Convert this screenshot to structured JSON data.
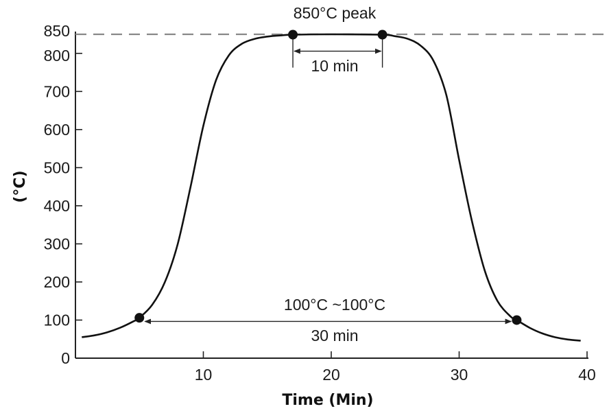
{
  "chart_data": {
    "type": "line",
    "xlabel": "Time (Min)",
    "ylabel": "(°C)",
    "xlim": [
      0,
      40
    ],
    "ylim": [
      0,
      850
    ],
    "x_ticks": [
      10,
      20,
      30,
      40
    ],
    "y_ticks": [
      0,
      100,
      200,
      300,
      400,
      500,
      600,
      700,
      800,
      850
    ],
    "grid": false,
    "series": [
      {
        "points": [
          [
            0.5,
            55
          ],
          [
            1.5,
            60
          ],
          [
            2.5,
            68
          ],
          [
            3.5,
            80
          ],
          [
            4.5,
            96
          ],
          [
            5.0,
            106
          ],
          [
            6.0,
            140
          ],
          [
            7.0,
            200
          ],
          [
            8.0,
            300
          ],
          [
            9.0,
            450
          ],
          [
            10.0,
            610
          ],
          [
            11.0,
            730
          ],
          [
            12.0,
            795
          ],
          [
            13.0,
            825
          ],
          [
            14.0,
            838
          ],
          [
            15.0,
            844
          ],
          [
            16.0,
            847
          ],
          [
            17.0,
            849
          ],
          [
            20.0,
            850
          ],
          [
            24.0,
            849
          ],
          [
            25.0,
            845
          ],
          [
            26.0,
            838
          ],
          [
            27.0,
            820
          ],
          [
            28.0,
            780
          ],
          [
            29.0,
            690
          ],
          [
            30.0,
            520
          ],
          [
            31.0,
            360
          ],
          [
            32.0,
            230
          ],
          [
            33.0,
            150
          ],
          [
            34.0,
            110
          ],
          [
            34.5,
            100
          ],
          [
            35.5,
            80
          ],
          [
            36.5,
            65
          ],
          [
            37.5,
            55
          ],
          [
            38.5,
            49
          ],
          [
            39.5,
            46
          ]
        ]
      }
    ],
    "reference_line": {
      "y": 850,
      "style": "dashed"
    },
    "markers": [
      {
        "x": 5.0,
        "y": 106
      },
      {
        "x": 17.0,
        "y": 849
      },
      {
        "x": 24.0,
        "y": 849
      },
      {
        "x": 34.5,
        "y": 100
      }
    ],
    "annotations": {
      "peak_label": "850°C peak",
      "peak_duration_label": "10 min",
      "range_label": "100°C ~100°C",
      "range_duration_label": "30 min"
    }
  }
}
